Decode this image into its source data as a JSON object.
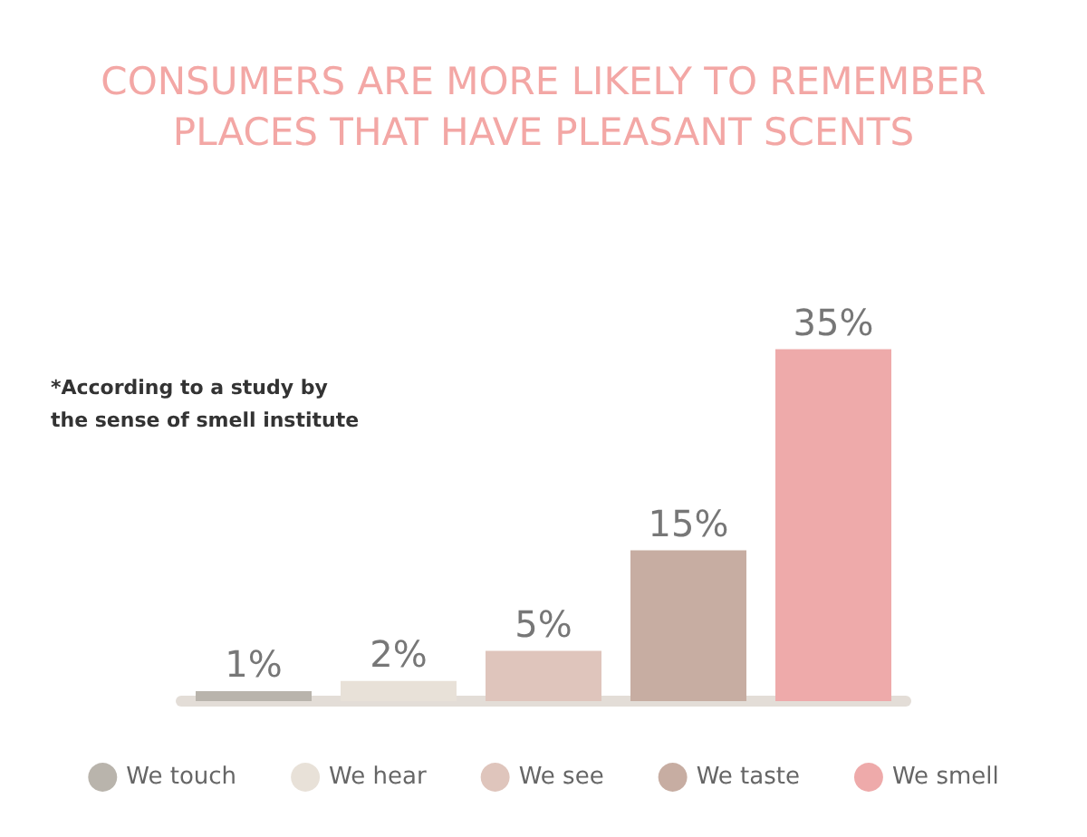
{
  "chart_data": {
    "type": "bar",
    "title": "CONSUMERS ARE MORE LIKELY TO REMEMBER\nPLACES THAT HAVE PLEASANT SCENTS",
    "annotations": [
      "*According to a study by\nthe sense of smell institute"
    ],
    "categories": [
      null
    ],
    "legend": "bottom",
    "grid": false,
    "series": [
      {
        "name": "We touch",
        "color": "#b9b4ac",
        "values": [
          1
        ],
        "value_labels": [
          "1%"
        ]
      },
      {
        "name": "We hear",
        "color": "#e8e1d8",
        "values": [
          2
        ],
        "value_labels": [
          "2%"
        ]
      },
      {
        "name": "We see",
        "color": "#dfc5bc",
        "values": [
          5
        ],
        "value_labels": [
          "5%"
        ]
      },
      {
        "name": "We taste",
        "color": "#c7ada2",
        "values": [
          15
        ],
        "value_labels": [
          "15%"
        ]
      },
      {
        "name": "We smell",
        "color": "#eeaaaa",
        "values": [
          35
        ],
        "value_labels": [
          "35%"
        ]
      }
    ]
  }
}
